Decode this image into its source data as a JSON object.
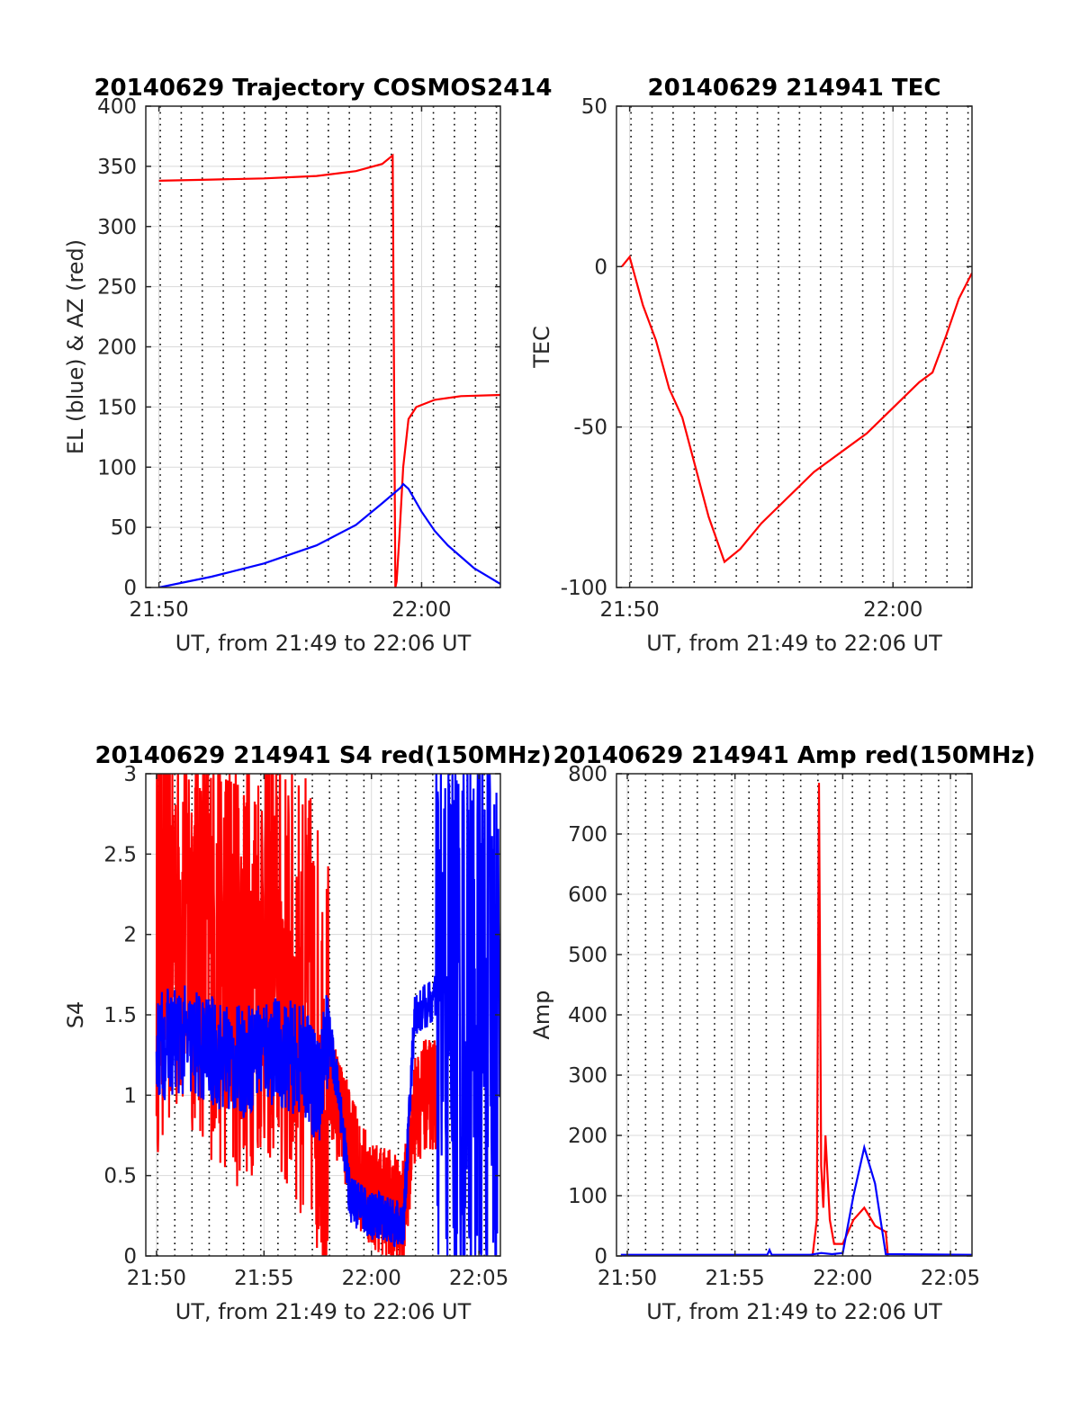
{
  "colors": {
    "red": "#ff0000",
    "blue": "#0000ff",
    "grid": "#d9d9d9",
    "axis": "#262626",
    "dotted": "#000000"
  },
  "chart_data": [
    {
      "type": "line",
      "title": "20140629 Trajectory COSMOS2414",
      "xlabel": "UT, from 21:49 to 22:06 UT",
      "ylabel": "EL (blue) & AZ (red)",
      "xlim": [
        "21:49:30",
        "22:03:00"
      ],
      "ylim": [
        0,
        400
      ],
      "xticks": [
        "21:50",
        "22:00"
      ],
      "yticks": [
        0,
        50,
        100,
        150,
        200,
        250,
        300,
        350,
        400
      ],
      "grid": true,
      "dotted_vlines_every_minutes": 0.8,
      "series": [
        {
          "color": "red",
          "x": [
            "21:50",
            "21:52",
            "21:54",
            "21:56",
            "21:57.5",
            "21:58.5",
            "21:58.9",
            "21:59.0",
            "21:59.05",
            "21:59.15",
            "21:59.3",
            "21:59.5",
            "21:59.8",
            "22:00.5",
            "22:01.5",
            "22:03"
          ],
          "values": [
            338,
            339,
            340,
            342,
            346,
            352,
            359,
            0,
            5,
            40,
            100,
            140,
            150,
            156,
            159,
            160
          ]
        },
        {
          "color": "blue",
          "x": [
            "21:50",
            "21:52",
            "21:54",
            "21:56",
            "21:57.5",
            "21:58.5",
            "21:59.2",
            "21:59.3",
            "21:59.5",
            "22:00",
            "22:00.5",
            "22:01",
            "22:02",
            "22:03"
          ],
          "values": [
            0,
            9,
            20,
            35,
            52,
            70,
            83,
            86,
            82,
            63,
            47,
            35,
            16,
            3
          ]
        }
      ]
    },
    {
      "type": "line",
      "title": "20140629 214941 TEC",
      "xlabel": "UT, from 21:49 to 22:06 UT",
      "ylabel": "TEC",
      "xlim": [
        "21:49:30",
        "22:03:00"
      ],
      "ylim": [
        -100,
        50
      ],
      "xticks": [
        "21:50",
        "22:00"
      ],
      "yticks": [
        -100,
        -50,
        0,
        50
      ],
      "grid": true,
      "series": [
        {
          "color": "red",
          "x": [
            "21:49.7",
            "21:50",
            "21:50.5",
            "21:51",
            "21:51.5",
            "21:52",
            "21:53",
            "21:53.6",
            "21:54.2",
            "21:55",
            "21:56",
            "21:57",
            "21:58",
            "21:59",
            "22:00",
            "22:01",
            "22:01.5",
            "22:02",
            "22:02.5",
            "22:03"
          ],
          "values": [
            0,
            3,
            -12,
            -23,
            -38,
            -47,
            -78,
            -92,
            -88,
            -80,
            -72,
            -64,
            -58,
            -52,
            -44,
            -36,
            -33,
            -22,
            -10,
            -2
          ]
        }
      ]
    },
    {
      "type": "line",
      "title": "20140629 214941 S4 red(150MHz)",
      "xlabel": "UT, from 21:49 to 22:06 UT",
      "ylabel": "S4",
      "xlim": [
        "21:49:30",
        "22:06:00"
      ],
      "ylim": [
        0,
        3
      ],
      "xticks": [
        "21:50",
        "21:55",
        "22:00",
        "22:05"
      ],
      "yticks": [
        0,
        0.5,
        1,
        1.5,
        2,
        2.5,
        3
      ],
      "grid": true,
      "series": [
        {
          "color": "red",
          "noisy": true,
          "x": [
            "21:50",
            "21:51",
            "21:52",
            "21:53",
            "21:54",
            "21:55",
            "21:56",
            "21:57",
            "21:58",
            "21:58.5",
            "21:59",
            "21:59.5",
            "22:00",
            "22:00.5",
            "22:01",
            "22:01.5",
            "22:02",
            "22:02.5",
            "22:03"
          ],
          "values": [
            2.0,
            2.2,
            2.1,
            1.9,
            1.8,
            2.0,
            1.7,
            1.6,
            1.1,
            0.9,
            0.7,
            0.5,
            0.4,
            0.35,
            0.3,
            0.25,
            0.9,
            1.0,
            1.0
          ]
        },
        {
          "color": "blue",
          "noisy": true,
          "x": [
            "21:50",
            "21:51",
            "21:52",
            "21:53",
            "21:54",
            "21:55",
            "21:56",
            "21:57",
            "21:57.5",
            "21:58",
            "21:58.5",
            "21:59",
            "21:59.5",
            "22:00",
            "22:00.5",
            "22:01",
            "22:01.5",
            "22:02",
            "22:03",
            "22:04",
            "22:05",
            "22:06"
          ],
          "values": [
            1.3,
            1.35,
            1.3,
            1.25,
            1.2,
            1.3,
            1.25,
            1.2,
            1.0,
            1.4,
            1.0,
            0.35,
            0.3,
            0.25,
            0.25,
            0.2,
            0.2,
            1.5,
            1.6,
            1.5,
            1.5,
            1.5
          ]
        }
      ]
    },
    {
      "type": "line",
      "title": "20140629 214941 Amp red(150MHz)",
      "xlabel": "UT, from 21:49 to 22:06 UT",
      "ylabel": "Amp",
      "xlim": [
        "21:49:30",
        "22:06:00"
      ],
      "ylim": [
        0,
        800
      ],
      "xticks": [
        "21:50",
        "21:55",
        "22:00",
        "22:05"
      ],
      "yticks": [
        0,
        100,
        200,
        300,
        400,
        500,
        600,
        700,
        800
      ],
      "grid": true,
      "series": [
        {
          "color": "red",
          "x": [
            "21:58.6",
            "21:58.8",
            "21:58.9",
            "21:59.0",
            "21:59.1",
            "21:59.2",
            "21:59.4",
            "21:59.6",
            "22:00",
            "22:00.5",
            "22:01",
            "22:01.5",
            "22:02",
            "22:02.1"
          ],
          "values": [
            0,
            60,
            785,
            150,
            80,
            200,
            60,
            20,
            20,
            60,
            80,
            50,
            40,
            0
          ]
        },
        {
          "color": "blue",
          "x": [
            "21:49.7",
            "21:56.5",
            "21:56.6",
            "21:56.7",
            "21:58.5",
            "21:59",
            "21:59.5",
            "22:00",
            "22:00.5",
            "22:01",
            "22:01.5",
            "22:02",
            "22:06"
          ],
          "values": [
            2,
            2,
            10,
            2,
            2,
            5,
            3,
            5,
            100,
            180,
            120,
            3,
            2
          ]
        }
      ]
    }
  ]
}
